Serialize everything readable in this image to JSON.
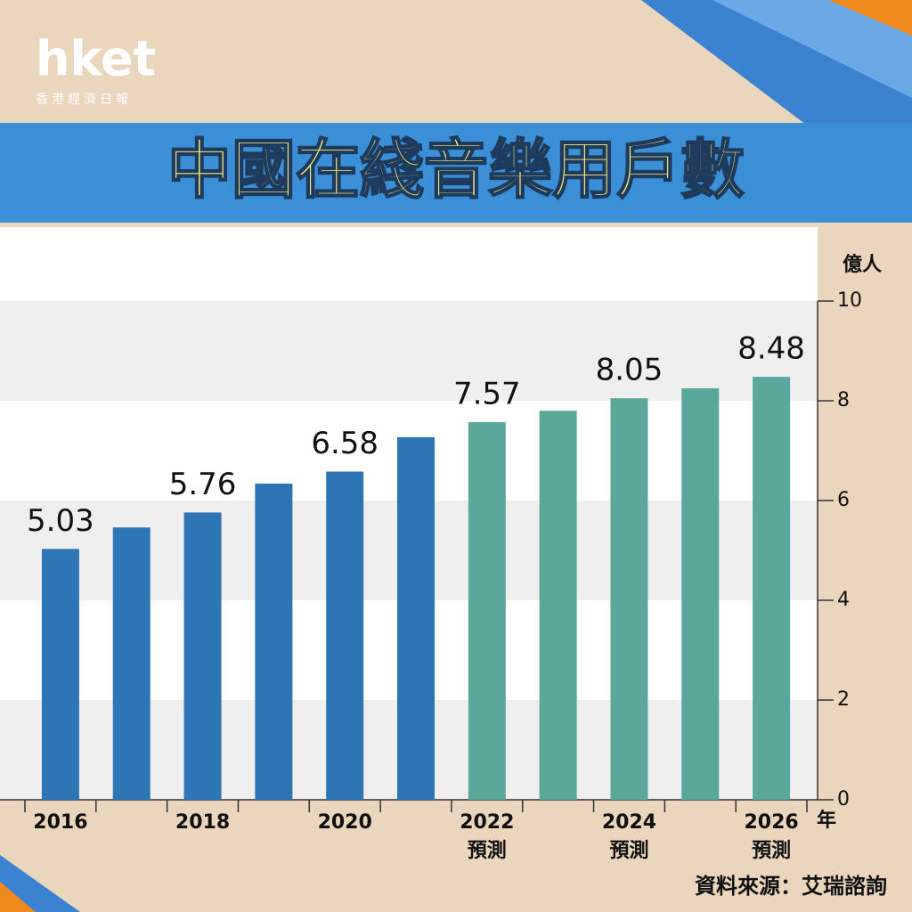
{
  "logo": {
    "brand": "hket",
    "subtitle": "香港經濟日報"
  },
  "chart_data": {
    "type": "bar",
    "title": "中國在綫音樂用戶數",
    "y_unit": "億人",
    "x_unit": "年",
    "source": "資料來源：艾瑞諮詢",
    "categories": [
      "2016",
      null,
      "2018",
      null,
      "2020",
      null,
      "2022",
      null,
      "2024",
      null,
      "2026"
    ],
    "x_sublabels": [
      null,
      null,
      null,
      null,
      null,
      null,
      "預測",
      null,
      "預測",
      null,
      "預測"
    ],
    "values": [
      5.03,
      5.46,
      5.76,
      6.34,
      6.58,
      7.27,
      7.57,
      7.8,
      8.05,
      8.25,
      8.48
    ],
    "value_labels": [
      "5.03",
      null,
      "5.76",
      null,
      "6.58",
      null,
      "7.57",
      null,
      "8.05",
      null,
      "8.48"
    ],
    "colors": [
      "#2e75b6",
      "#2e75b6",
      "#2e75b6",
      "#2e75b6",
      "#2e75b6",
      "#2e75b6",
      "#5aa89a",
      "#5aa89a",
      "#5aa89a",
      "#5aa89a",
      "#5aa89a"
    ],
    "ylim": [
      0,
      10
    ],
    "yticks": [
      0,
      2,
      4,
      6,
      8,
      10
    ],
    "grid": true
  }
}
